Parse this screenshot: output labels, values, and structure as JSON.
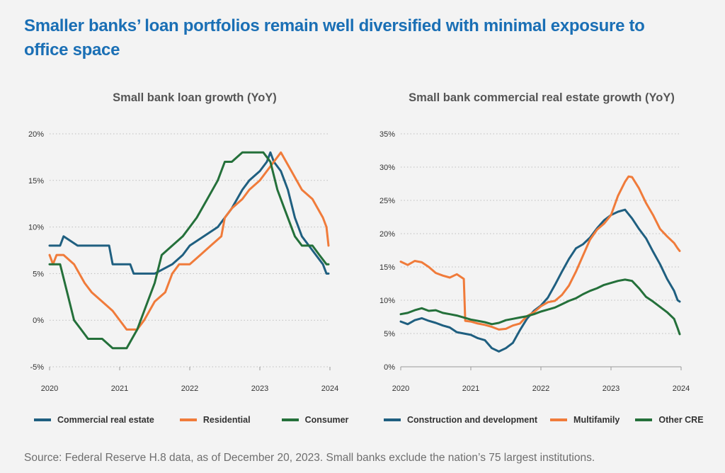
{
  "title": "Smaller banks’ loan portfolios remain well diversified with minimal exposure to office space",
  "source": "Source: Federal Reserve H.8 data, as of December 20, 2023. Small banks exclude the nation’s 75 largest institutions.",
  "colors": {
    "title": "#1a6fb5",
    "commercial_real_estate": "#1f5f80",
    "residential": "#f07b3a",
    "consumer": "#24703a"
  },
  "chart_data": [
    {
      "type": "line",
      "title": "Small bank loan growth (YoY)",
      "xlabel": "",
      "ylabel": "",
      "xlim": [
        2020,
        2024
      ],
      "xticks": [
        "2020",
        "2021",
        "2022",
        "2023",
        "2024"
      ],
      "ylim": [
        -5,
        20
      ],
      "yticks": [
        "-5%",
        "0%",
        "5%",
        "10%",
        "15%",
        "20%"
      ],
      "grid": "horizontal dotted",
      "legend": "bottom",
      "series": [
        {
          "name": "Commercial real estate",
          "color": "#1f5f80",
          "x": [
            2020.0,
            2020.15,
            2020.2,
            2020.4,
            2020.85,
            2020.9,
            2021.15,
            2021.2,
            2021.5,
            2021.75,
            2021.9,
            2022.0,
            2022.2,
            2022.4,
            2022.6,
            2022.75,
            2022.85,
            2023.0,
            2023.1,
            2023.15,
            2023.2,
            2023.3,
            2023.4,
            2023.5,
            2023.6,
            2023.7,
            2023.8,
            2023.9,
            2023.95,
            2023.98
          ],
          "y": [
            8,
            8,
            9,
            8,
            8,
            6,
            6,
            5,
            5,
            6,
            7,
            8,
            9,
            10,
            12,
            14,
            15,
            16,
            17,
            18,
            17,
            16,
            14,
            11,
            9,
            8,
            7,
            6,
            5,
            5
          ]
        },
        {
          "name": "Residential",
          "color": "#f07b3a",
          "x": [
            2020.0,
            2020.05,
            2020.1,
            2020.2,
            2020.35,
            2020.5,
            2020.6,
            2020.75,
            2020.9,
            2021.1,
            2021.25,
            2021.35,
            2021.5,
            2021.65,
            2021.75,
            2021.85,
            2022.0,
            2022.15,
            2022.3,
            2022.45,
            2022.5,
            2022.6,
            2022.75,
            2022.85,
            2023.0,
            2023.1,
            2023.2,
            2023.3,
            2023.45,
            2023.6,
            2023.75,
            2023.9,
            2023.95,
            2023.98
          ],
          "y": [
            7,
            6,
            7,
            7,
            6,
            4,
            3,
            2,
            1,
            -1,
            -1,
            0,
            2,
            3,
            5,
            6,
            6,
            7,
            8,
            9,
            11,
            12,
            13,
            14,
            15,
            16,
            17,
            18,
            16,
            14,
            13,
            11,
            10,
            8
          ]
        },
        {
          "name": "Consumer",
          "color": "#24703a",
          "x": [
            2020.0,
            2020.15,
            2020.25,
            2020.35,
            2020.45,
            2020.55,
            2020.75,
            2020.9,
            2021.1,
            2021.25,
            2021.4,
            2021.5,
            2021.6,
            2021.75,
            2021.9,
            2022.0,
            2022.1,
            2022.25,
            2022.4,
            2022.5,
            2022.6,
            2022.75,
            2022.9,
            2023.05,
            2023.15,
            2023.25,
            2023.35,
            2023.5,
            2023.6,
            2023.75,
            2023.85,
            2023.95,
            2023.98
          ],
          "y": [
            6,
            6,
            3,
            0,
            -1,
            -2,
            -2,
            -3,
            -3,
            -1,
            2,
            4,
            7,
            8,
            9,
            10,
            11,
            13,
            15,
            17,
            17,
            18,
            18,
            18,
            17,
            14,
            12,
            9,
            8,
            8,
            7,
            6,
            6
          ]
        }
      ]
    },
    {
      "type": "line",
      "title": "Small bank commercial real estate growth (YoY)",
      "xlabel": "",
      "ylabel": "",
      "xlim": [
        2020,
        2024
      ],
      "xticks": [
        "2020",
        "2021",
        "2022",
        "2023",
        "2024"
      ],
      "ylim": [
        0,
        35
      ],
      "yticks": [
        "0%",
        "5%",
        "10%",
        "15%",
        "20%",
        "25%",
        "30%",
        "35%"
      ],
      "grid": "horizontal dotted",
      "legend": "bottom",
      "series": [
        {
          "name": "Construction and development",
          "color": "#1f5f80",
          "x": [
            2020.0,
            2020.1,
            2020.2,
            2020.3,
            2020.4,
            2020.5,
            2020.6,
            2020.7,
            2020.8,
            2020.9,
            2021.0,
            2021.1,
            2021.2,
            2021.3,
            2021.4,
            2021.5,
            2021.6,
            2021.7,
            2021.8,
            2021.9,
            2022.0,
            2022.1,
            2022.2,
            2022.3,
            2022.4,
            2022.5,
            2022.6,
            2022.7,
            2022.8,
            2022.9,
            2023.0,
            2023.1,
            2023.2,
            2023.3,
            2023.4,
            2023.5,
            2023.6,
            2023.7,
            2023.8,
            2023.9,
            2023.95,
            2023.98
          ],
          "y": [
            6.8,
            6.4,
            7.0,
            7.3,
            6.9,
            6.6,
            6.2,
            5.9,
            5.2,
            5.0,
            4.8,
            4.3,
            4.0,
            2.8,
            2.3,
            2.8,
            3.6,
            5.5,
            7.2,
            8.4,
            9.2,
            10.4,
            12.3,
            14.3,
            16.2,
            17.8,
            18.4,
            19.4,
            20.8,
            22.0,
            22.8,
            23.3,
            23.6,
            22.3,
            20.7,
            19.3,
            17.3,
            15.4,
            13.2,
            11.4,
            10.0,
            9.8
          ]
        },
        {
          "name": "Multifamily",
          "color": "#f07b3a",
          "x": [
            2020.0,
            2020.1,
            2020.2,
            2020.3,
            2020.4,
            2020.5,
            2020.6,
            2020.7,
            2020.8,
            2020.9,
            2020.92,
            2021.0,
            2021.1,
            2021.2,
            2021.3,
            2021.4,
            2021.5,
            2021.6,
            2021.7,
            2021.8,
            2021.9,
            2022.0,
            2022.1,
            2022.2,
            2022.3,
            2022.4,
            2022.5,
            2022.6,
            2022.7,
            2022.8,
            2022.9,
            2023.0,
            2023.1,
            2023.2,
            2023.25,
            2023.3,
            2023.4,
            2023.5,
            2023.6,
            2023.7,
            2023.8,
            2023.9,
            2023.95,
            2023.98
          ],
          "y": [
            15.8,
            15.3,
            15.9,
            15.7,
            15.0,
            14.1,
            13.7,
            13.4,
            13.9,
            13.2,
            6.9,
            6.8,
            6.5,
            6.3,
            6.0,
            5.6,
            5.7,
            6.2,
            6.5,
            7.6,
            8.2,
            9.1,
            9.7,
            9.9,
            10.8,
            12.2,
            14.3,
            16.7,
            19.1,
            20.6,
            21.5,
            22.8,
            25.7,
            27.8,
            28.6,
            28.5,
            26.8,
            24.6,
            22.8,
            20.7,
            19.6,
            18.6,
            17.8,
            17.4
          ]
        },
        {
          "name": "Other CRE",
          "color": "#24703a",
          "x": [
            2020.0,
            2020.1,
            2020.2,
            2020.3,
            2020.4,
            2020.5,
            2020.6,
            2020.7,
            2020.8,
            2020.9,
            2021.0,
            2021.1,
            2021.2,
            2021.3,
            2021.4,
            2021.5,
            2021.6,
            2021.7,
            2021.8,
            2021.9,
            2022.0,
            2022.1,
            2022.2,
            2022.3,
            2022.4,
            2022.5,
            2022.6,
            2022.7,
            2022.8,
            2022.9,
            2023.0,
            2023.1,
            2023.2,
            2023.3,
            2023.4,
            2023.5,
            2023.6,
            2023.7,
            2023.8,
            2023.9,
            2023.95,
            2023.98
          ],
          "y": [
            7.9,
            8.1,
            8.5,
            8.8,
            8.4,
            8.5,
            8.1,
            7.9,
            7.7,
            7.4,
            7.1,
            6.9,
            6.7,
            6.4,
            6.6,
            7.0,
            7.2,
            7.4,
            7.6,
            7.9,
            8.3,
            8.6,
            8.9,
            9.4,
            9.9,
            10.3,
            10.9,
            11.4,
            11.8,
            12.3,
            12.6,
            12.9,
            13.1,
            12.9,
            11.8,
            10.5,
            9.8,
            9.0,
            8.2,
            7.2,
            5.8,
            4.9
          ]
        }
      ]
    }
  ]
}
